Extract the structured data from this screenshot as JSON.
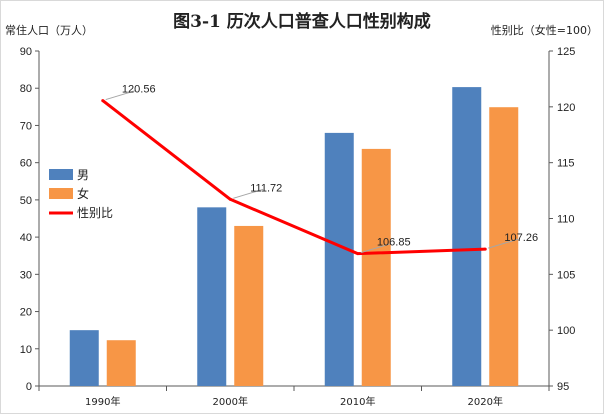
{
  "chart_data": {
    "type": "bar",
    "title": "图3-1 历次人口普查人口性别构成",
    "ylabel_left": "常住人口（万人）",
    "ylabel_right": "性别比（女性=100）",
    "categories": [
      "1990年",
      "2000年",
      "2010年",
      "2020年"
    ],
    "ylim_left": [
      0,
      90
    ],
    "yticks_left": [
      0,
      10,
      20,
      30,
      40,
      50,
      60,
      70,
      80,
      90
    ],
    "ylim_right": [
      95,
      125
    ],
    "yticks_right": [
      95,
      100,
      105,
      110,
      115,
      120,
      125
    ],
    "grid": false,
    "legend_position": "left",
    "series": [
      {
        "name": "男",
        "type": "bar",
        "axis": "left",
        "color": "#4f81bd",
        "values": [
          15.0,
          48.0,
          68.0,
          80.3
        ]
      },
      {
        "name": "女",
        "type": "bar",
        "axis": "left",
        "color": "#f79646",
        "values": [
          12.3,
          43.0,
          63.7,
          74.9
        ]
      },
      {
        "name": "性别比",
        "type": "line",
        "axis": "right",
        "color": "#ff0000",
        "values": [
          120.56,
          111.72,
          106.85,
          107.26
        ],
        "labels": [
          "120.56",
          "111.72",
          "106.85",
          "107.26"
        ]
      }
    ]
  }
}
